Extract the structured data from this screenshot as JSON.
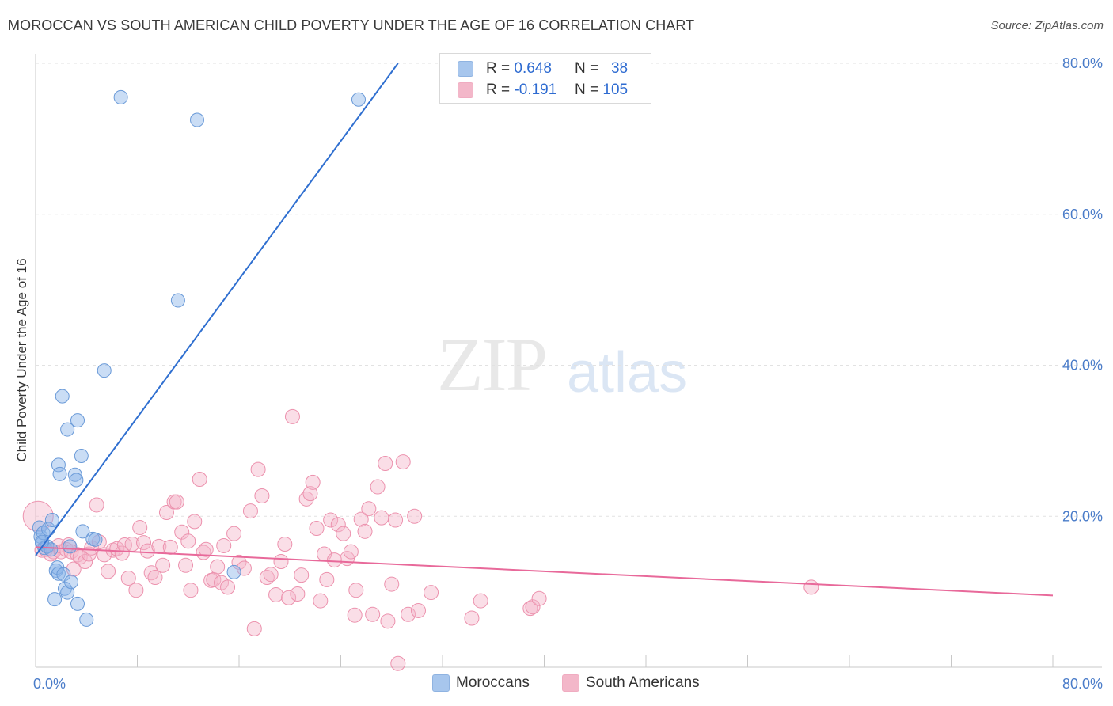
{
  "title": "MOROCCAN VS SOUTH AMERICAN CHILD POVERTY UNDER THE AGE OF 16 CORRELATION CHART",
  "source": "Source: ZipAtlas.com",
  "watermark": {
    "zip": "ZIP",
    "atlas": "atlas"
  },
  "legend": {
    "series1": {
      "r_label": "R =",
      "r_value": "0.648",
      "n_label": "N =",
      "n_value": "38",
      "color": "#8ab4e8"
    },
    "series2": {
      "r_label": "R =",
      "r_value": "-0.191",
      "n_label": "N =",
      "n_value": "105",
      "color": "#f0a0b8"
    }
  },
  "bottom_legend": {
    "moroccans": "Moroccans",
    "south_americans": "South Americans"
  },
  "chart_data": {
    "type": "scatter",
    "title": "MOROCCAN VS SOUTH AMERICAN CHILD POVERTY UNDER THE AGE OF 16 CORRELATION CHART",
    "ylabel": "Child Poverty Under the Age of 16",
    "xlim": [
      0,
      80
    ],
    "ylim": [
      0,
      80
    ],
    "x_tick_labels": [
      "0.0%",
      "80.0%"
    ],
    "y_tick_labels": [
      "20.0%",
      "40.0%",
      "60.0%",
      "80.0%"
    ],
    "y_ticks": [
      20,
      40,
      60,
      80
    ],
    "grid": true,
    "series": [
      {
        "name": "Moroccans",
        "color": "#8ab4e8",
        "stroke": "#6a9ad8",
        "trend": {
          "x": [
            0,
            28.5
          ],
          "y": [
            14.8,
            80
          ],
          "color": "#2f6fd0"
        },
        "points": [
          [
            0.3,
            18.5
          ],
          [
            0.4,
            17.3
          ],
          [
            0.5,
            16.4
          ],
          [
            0.6,
            17.8
          ],
          [
            0.7,
            15.8
          ],
          [
            0.9,
            16.0
          ],
          [
            1.0,
            18.3
          ],
          [
            1.2,
            15.6
          ],
          [
            1.3,
            19.5
          ],
          [
            1.5,
            9.0
          ],
          [
            1.6,
            12.8
          ],
          [
            1.7,
            13.2
          ],
          [
            1.8,
            12.4
          ],
          [
            1.8,
            26.8
          ],
          [
            1.9,
            25.6
          ],
          [
            2.1,
            35.9
          ],
          [
            2.2,
            12.3
          ],
          [
            2.3,
            10.4
          ],
          [
            2.5,
            9.9
          ],
          [
            2.5,
            31.5
          ],
          [
            2.7,
            16.0
          ],
          [
            2.8,
            11.3
          ],
          [
            3.1,
            25.5
          ],
          [
            3.2,
            24.8
          ],
          [
            3.3,
            8.4
          ],
          [
            3.3,
            32.7
          ],
          [
            3.6,
            28.0
          ],
          [
            3.7,
            18.0
          ],
          [
            4.0,
            6.3
          ],
          [
            4.5,
            17.0
          ],
          [
            4.7,
            16.9
          ],
          [
            5.4,
            39.3
          ],
          [
            6.7,
            75.5
          ],
          [
            11.2,
            48.6
          ],
          [
            12.7,
            72.5
          ],
          [
            15.6,
            12.6
          ],
          [
            25.4,
            75.2
          ],
          [
            0.5,
            16.6
          ]
        ]
      },
      {
        "name": "South Americans",
        "color": "#f5b6c9",
        "stroke": "#ec91ad",
        "trend": {
          "x": [
            0,
            80
          ],
          "y": [
            15.9,
            9.5
          ],
          "color": "#e8699a"
        },
        "points": [
          [
            0.2,
            20.0
          ],
          [
            0.5,
            15.5
          ],
          [
            0.8,
            15.6
          ],
          [
            1.2,
            15.0
          ],
          [
            1.4,
            15.3
          ],
          [
            1.8,
            16.1
          ],
          [
            2.0,
            15.3
          ],
          [
            2.4,
            15.6
          ],
          [
            2.6,
            16.2
          ],
          [
            2.8,
            15.3
          ],
          [
            3.0,
            13.0
          ],
          [
            3.3,
            14.9
          ],
          [
            3.5,
            14.6
          ],
          [
            3.9,
            14.0
          ],
          [
            4.2,
            15.0
          ],
          [
            4.4,
            15.8
          ],
          [
            4.8,
            21.5
          ],
          [
            5.0,
            16.6
          ],
          [
            5.4,
            14.9
          ],
          [
            5.7,
            12.7
          ],
          [
            6.1,
            15.5
          ],
          [
            6.4,
            15.7
          ],
          [
            6.8,
            15.1
          ],
          [
            7.0,
            16.2
          ],
          [
            7.3,
            11.8
          ],
          [
            7.6,
            16.3
          ],
          [
            7.9,
            10.2
          ],
          [
            8.2,
            18.5
          ],
          [
            8.5,
            16.5
          ],
          [
            8.8,
            15.4
          ],
          [
            9.1,
            12.5
          ],
          [
            9.4,
            11.9
          ],
          [
            9.7,
            16.0
          ],
          [
            10.0,
            13.5
          ],
          [
            10.3,
            20.5
          ],
          [
            10.6,
            15.9
          ],
          [
            10.9,
            21.9
          ],
          [
            11.1,
            21.9
          ],
          [
            11.5,
            17.9
          ],
          [
            11.8,
            13.5
          ],
          [
            12.0,
            16.7
          ],
          [
            12.2,
            10.2
          ],
          [
            12.5,
            19.3
          ],
          [
            12.9,
            24.9
          ],
          [
            13.2,
            15.2
          ],
          [
            13.4,
            15.6
          ],
          [
            13.8,
            11.5
          ],
          [
            14.0,
            11.6
          ],
          [
            14.3,
            13.3
          ],
          [
            14.6,
            11.2
          ],
          [
            14.8,
            16.1
          ],
          [
            15.1,
            10.6
          ],
          [
            15.6,
            17.7
          ],
          [
            16.0,
            13.9
          ],
          [
            16.4,
            13.1
          ],
          [
            16.9,
            20.7
          ],
          [
            17.2,
            5.1
          ],
          [
            17.5,
            26.2
          ],
          [
            17.8,
            22.7
          ],
          [
            18.2,
            11.9
          ],
          [
            18.5,
            12.3
          ],
          [
            18.9,
            9.6
          ],
          [
            19.3,
            14.0
          ],
          [
            19.6,
            16.3
          ],
          [
            19.9,
            9.2
          ],
          [
            20.2,
            33.2
          ],
          [
            20.6,
            9.7
          ],
          [
            20.9,
            12.2
          ],
          [
            21.3,
            22.3
          ],
          [
            21.6,
            23.0
          ],
          [
            21.8,
            24.5
          ],
          [
            22.1,
            18.4
          ],
          [
            22.4,
            8.8
          ],
          [
            22.7,
            15.0
          ],
          [
            22.9,
            11.6
          ],
          [
            23.2,
            19.5
          ],
          [
            23.5,
            14.2
          ],
          [
            23.8,
            18.9
          ],
          [
            24.2,
            17.7
          ],
          [
            24.5,
            14.4
          ],
          [
            24.8,
            15.3
          ],
          [
            25.1,
            6.9
          ],
          [
            25.2,
            10.2
          ],
          [
            25.6,
            19.6
          ],
          [
            25.9,
            18.0
          ],
          [
            26.2,
            21.0
          ],
          [
            26.5,
            7.0
          ],
          [
            26.9,
            23.9
          ],
          [
            27.2,
            19.8
          ],
          [
            27.5,
            27.0
          ],
          [
            27.7,
            6.1
          ],
          [
            28.0,
            11.0
          ],
          [
            28.3,
            19.5
          ],
          [
            28.5,
            0.5
          ],
          [
            28.9,
            27.2
          ],
          [
            29.3,
            7.0
          ],
          [
            29.8,
            20.0
          ],
          [
            30.1,
            7.5
          ],
          [
            31.1,
            9.9
          ],
          [
            34.3,
            6.5
          ],
          [
            35.0,
            8.8
          ],
          [
            38.9,
            7.8
          ],
          [
            39.1,
            8.0
          ],
          [
            39.6,
            9.1
          ],
          [
            61.0,
            10.6
          ]
        ]
      }
    ]
  }
}
